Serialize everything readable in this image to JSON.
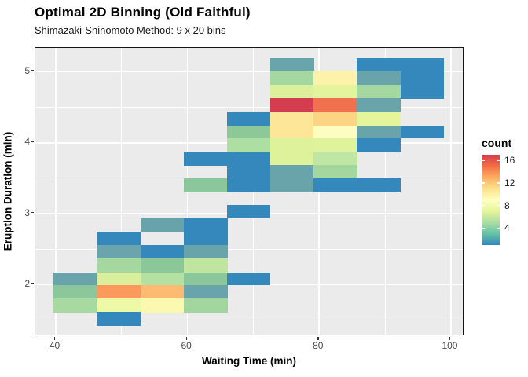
{
  "title": "Optimal 2D Binning (Old Faithful)",
  "subtitle": "Shimazaki-Shinomoto Method: 9 x 20 bins",
  "axes": {
    "x": {
      "label": "Waiting Time (min)",
      "ticks": [
        40,
        60,
        80,
        100
      ],
      "minor": [
        50,
        70,
        90
      ]
    },
    "y": {
      "label": "Eruption Duration (min)",
      "ticks": [
        2,
        3,
        4,
        5
      ],
      "minor": [
        1.5,
        2.5,
        3.5,
        4.5
      ]
    }
  },
  "legend": {
    "title": "count",
    "ticks": [
      16,
      12,
      8,
      4
    ],
    "range": [
      1,
      17
    ],
    "gradient_low_to_high": [
      "#3288BD",
      "#66C2A5",
      "#ABDDA4",
      "#E6F598",
      "#FFFFBF",
      "#FEE08B",
      "#FDAE61",
      "#F46D43",
      "#D53E4F"
    ]
  },
  "colors": {
    "panel_bg": "#EBEBEB",
    "gridline": "#FFFFFF",
    "panel_border": "#141414",
    "tick_text": "#4D4D4D"
  },
  "chart_data": {
    "type": "heatmap",
    "x_variable": "waiting time (min)",
    "y_variable": "eruption duration (min)",
    "n_x_bins": 9,
    "n_y_bins": 20,
    "x_bin_edges": [
      39.7,
      46.3,
      52.9,
      59.5,
      66.1,
      72.6,
      79.2,
      85.8,
      92.4,
      99.0
    ],
    "y_bin_edges": [
      1.42,
      1.61,
      1.8,
      1.99,
      2.17,
      2.36,
      2.55,
      2.74,
      2.93,
      3.12,
      3.3,
      3.49,
      3.68,
      3.87,
      4.06,
      4.24,
      4.43,
      4.62,
      4.81,
      5.0,
      5.19
    ],
    "note": "tiles listed as col (1=leftmost x-bin), row (1=topmost y-bin), estimated count, fill color",
    "tiles": [
      {
        "c": 6,
        "r": 1,
        "n": 2,
        "fill": "#6AA4AB"
      },
      {
        "c": 8,
        "r": 1,
        "n": 1,
        "fill": "#3588BC"
      },
      {
        "c": 9,
        "r": 1,
        "n": 1,
        "fill": "#3588BC"
      },
      {
        "c": 6,
        "r": 2,
        "n": 5,
        "fill": "#A5D7A0"
      },
      {
        "c": 7,
        "r": 2,
        "n": 10,
        "fill": "#FDF2AA"
      },
      {
        "c": 8,
        "r": 2,
        "n": 2,
        "fill": "#6AA4AB"
      },
      {
        "c": 9,
        "r": 2,
        "n": 1,
        "fill": "#3588BC"
      },
      {
        "c": 6,
        "r": 3,
        "n": 7,
        "fill": "#DCF09B"
      },
      {
        "c": 7,
        "r": 3,
        "n": 7,
        "fill": "#E3F49C"
      },
      {
        "c": 8,
        "r": 3,
        "n": 5,
        "fill": "#A4D8A0"
      },
      {
        "c": 9,
        "r": 3,
        "n": 1,
        "fill": "#3588BC"
      },
      {
        "c": 6,
        "r": 4,
        "n": 17,
        "fill": "#D43D4F"
      },
      {
        "c": 7,
        "r": 4,
        "n": 15,
        "fill": "#F1714F"
      },
      {
        "c": 8,
        "r": 4,
        "n": 2,
        "fill": "#6AA4AB"
      },
      {
        "c": 5,
        "r": 5,
        "n": 1,
        "fill": "#3588BC"
      },
      {
        "c": 6,
        "r": 5,
        "n": 10,
        "fill": "#FEE698"
      },
      {
        "c": 7,
        "r": 5,
        "n": 11,
        "fill": "#FDD384"
      },
      {
        "c": 8,
        "r": 5,
        "n": 7,
        "fill": "#E4F59B"
      },
      {
        "c": 5,
        "r": 6,
        "n": 4,
        "fill": "#8CC898"
      },
      {
        "c": 6,
        "r": 6,
        "n": 10,
        "fill": "#FEE698"
      },
      {
        "c": 7,
        "r": 6,
        "n": 9,
        "fill": "#FDFDC2"
      },
      {
        "c": 8,
        "r": 6,
        "n": 2,
        "fill": "#6AA4AB"
      },
      {
        "c": 9,
        "r": 6,
        "n": 1,
        "fill": "#3588BC"
      },
      {
        "c": 5,
        "r": 7,
        "n": 5,
        "fill": "#ADDFA2"
      },
      {
        "c": 6,
        "r": 7,
        "n": 7,
        "fill": "#DEF29C"
      },
      {
        "c": 7,
        "r": 7,
        "n": 7,
        "fill": "#DFF29C"
      },
      {
        "c": 8,
        "r": 7,
        "n": 1,
        "fill": "#3588BC"
      },
      {
        "c": 4,
        "r": 8,
        "n": 1,
        "fill": "#3588BC"
      },
      {
        "c": 5,
        "r": 8,
        "n": 1,
        "fill": "#3588BC"
      },
      {
        "c": 6,
        "r": 8,
        "n": 7,
        "fill": "#DEF29C"
      },
      {
        "c": 7,
        "r": 8,
        "n": 6,
        "fill": "#C0E6A4"
      },
      {
        "c": 5,
        "r": 9,
        "n": 1,
        "fill": "#3588BC"
      },
      {
        "c": 6,
        "r": 9,
        "n": 2,
        "fill": "#6AA4AB"
      },
      {
        "c": 7,
        "r": 9,
        "n": 5,
        "fill": "#A3D79F"
      },
      {
        "c": 4,
        "r": 10,
        "n": 4,
        "fill": "#8BC79A"
      },
      {
        "c": 5,
        "r": 10,
        "n": 1,
        "fill": "#3588BC"
      },
      {
        "c": 6,
        "r": 10,
        "n": 2,
        "fill": "#6AA4AB"
      },
      {
        "c": 7,
        "r": 10,
        "n": 1,
        "fill": "#3588BC"
      },
      {
        "c": 8,
        "r": 10,
        "n": 1,
        "fill": "#3588BC"
      },
      {
        "c": 5,
        "r": 12,
        "n": 1,
        "fill": "#3588BC"
      },
      {
        "c": 3,
        "r": 13,
        "n": 2,
        "fill": "#68A2AB"
      },
      {
        "c": 4,
        "r": 13,
        "n": 1,
        "fill": "#3588BC"
      },
      {
        "c": 2,
        "r": 14,
        "n": 1,
        "fill": "#3588BC"
      },
      {
        "c": 4,
        "r": 14,
        "n": 1,
        "fill": "#3588BC"
      },
      {
        "c": 2,
        "r": 15,
        "n": 2,
        "fill": "#6BA4AC"
      },
      {
        "c": 3,
        "r": 15,
        "n": 1,
        "fill": "#3588BC"
      },
      {
        "c": 4,
        "r": 15,
        "n": 2,
        "fill": "#6AA4AB"
      },
      {
        "c": 2,
        "r": 16,
        "n": 5,
        "fill": "#A5D8A0"
      },
      {
        "c": 3,
        "r": 16,
        "n": 4,
        "fill": "#8CC79A"
      },
      {
        "c": 4,
        "r": 16,
        "n": 6,
        "fill": "#BFE5A0"
      },
      {
        "c": 1,
        "r": 17,
        "n": 2,
        "fill": "#6AA4AB"
      },
      {
        "c": 2,
        "r": 17,
        "n": 7,
        "fill": "#D9EF9B"
      },
      {
        "c": 3,
        "r": 17,
        "n": 6,
        "fill": "#B4E0A2"
      },
      {
        "c": 4,
        "r": 17,
        "n": 4,
        "fill": "#8BC79A"
      },
      {
        "c": 5,
        "r": 17,
        "n": 1,
        "fill": "#3588BC"
      },
      {
        "c": 1,
        "r": 18,
        "n": 4,
        "fill": "#8CC79B"
      },
      {
        "c": 2,
        "r": 18,
        "n": 13,
        "fill": "#FB9A5C"
      },
      {
        "c": 3,
        "r": 18,
        "n": 12,
        "fill": "#FDBA72"
      },
      {
        "c": 4,
        "r": 18,
        "n": 2,
        "fill": "#69A3AB"
      },
      {
        "c": 1,
        "r": 19,
        "n": 5,
        "fill": "#A7D9A0"
      },
      {
        "c": 2,
        "r": 19,
        "n": 7,
        "fill": "#EEF9A7"
      },
      {
        "c": 3,
        "r": 19,
        "n": 9,
        "fill": "#FBF8B0"
      },
      {
        "c": 4,
        "r": 19,
        "n": 5,
        "fill": "#A3D69F"
      },
      {
        "c": 2,
        "r": 20,
        "n": 1,
        "fill": "#3588BC"
      }
    ]
  }
}
